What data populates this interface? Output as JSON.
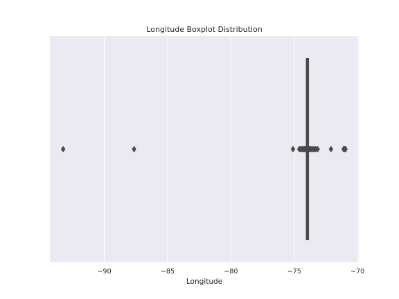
{
  "chart_data": {
    "type": "boxplot",
    "title": "Longitude Boxplot Distribution",
    "xlabel": "Longitude",
    "ylabel": "",
    "xlim": [
      -94.3,
      -69.9
    ],
    "xticks": [
      -90,
      -85,
      -80,
      -75,
      -70
    ],
    "xtick_labels": [
      "−90",
      "−85",
      "−80",
      "−75",
      "−70"
    ],
    "grid": true,
    "box": {
      "q1": -74.0,
      "median": -73.96,
      "q3": -73.92,
      "whisker_low": -74.05,
      "whisker_high": -73.86
    },
    "outliers": [
      -93.25,
      -87.65,
      -75.1,
      -74.6,
      -74.5,
      -74.45,
      -74.35,
      -74.25,
      -74.2,
      -74.15,
      -74.1,
      -73.8,
      -73.75,
      -73.7,
      -73.6,
      -73.5,
      -73.4,
      -73.3,
      -73.15,
      -72.1,
      -71.1,
      -71.05,
      -71.0,
      -70.95
    ]
  },
  "colors": {
    "background": "#eaeaf2",
    "grid": "#ffffff",
    "box": "#4b4b4b"
  }
}
